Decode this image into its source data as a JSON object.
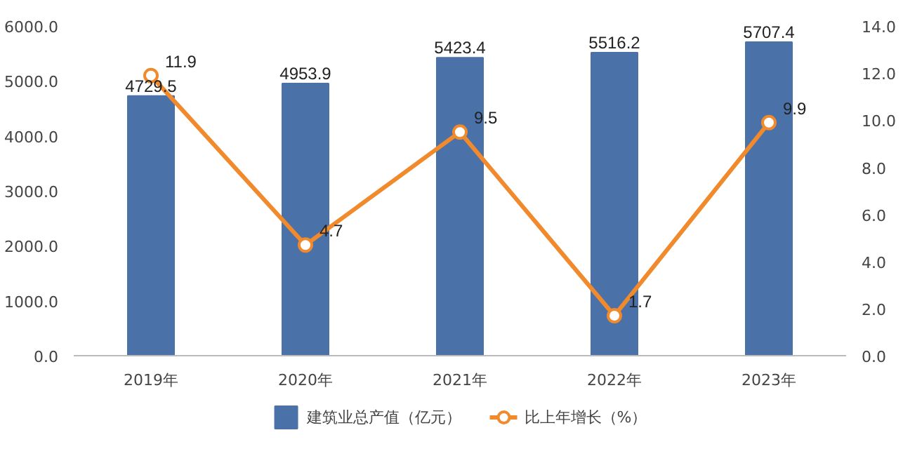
{
  "chart_data": {
    "type": "bar",
    "categories": [
      "2019年",
      "2020年",
      "2021年",
      "2022年",
      "2023年"
    ],
    "series": [
      {
        "name": "建筑业总产值（亿元）",
        "color": "#4a72a8",
        "values": [
          4729.5,
          4953.9,
          5423.4,
          5516.2,
          5707.4
        ]
      },
      {
        "name": "比上年增长（%）",
        "type": "line",
        "axis": "y2",
        "color": "#f08a2c",
        "marker": "circle",
        "values": [
          11.9,
          4.7,
          9.5,
          1.7,
          9.9
        ]
      }
    ],
    "ylim": [
      0,
      6000
    ],
    "yticks": [
      {
        "value": 0,
        "label": "0.0"
      },
      {
        "value": 1000,
        "label": "1000.0"
      },
      {
        "value": 2000,
        "label": "2000.0"
      },
      {
        "value": 3000,
        "label": "3000.0"
      },
      {
        "value": 4000,
        "label": "4000.0"
      },
      {
        "value": 5000,
        "label": "5000.0"
      },
      {
        "value": 6000,
        "label": "6000.0"
      }
    ],
    "y2lim": [
      0,
      14
    ],
    "y2ticks": [
      {
        "value": 0,
        "label": "0.0"
      },
      {
        "value": 2,
        "label": "2.0"
      },
      {
        "value": 4,
        "label": "4.0"
      },
      {
        "value": 6,
        "label": "6.0"
      },
      {
        "value": 8,
        "label": "8.0"
      },
      {
        "value": 10,
        "label": "10.0"
      },
      {
        "value": 12,
        "label": "12.0"
      },
      {
        "value": 14,
        "label": "14.0"
      }
    ],
    "data_labels": true,
    "legend": "bottom",
    "grid": false
  }
}
